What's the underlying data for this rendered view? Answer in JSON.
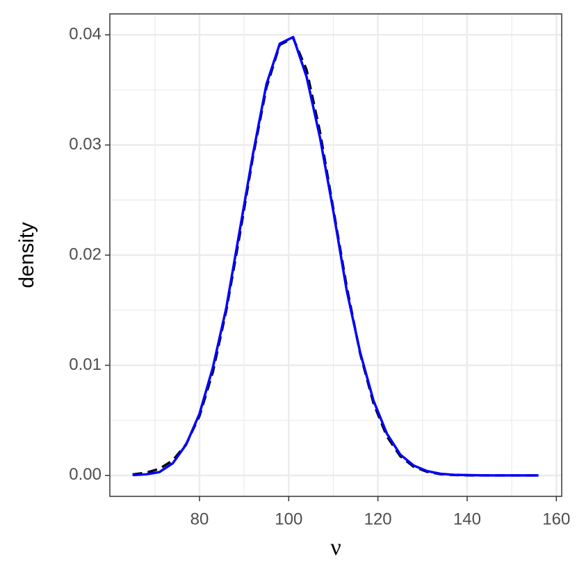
{
  "chart_data": {
    "type": "line",
    "xlabel": "ν",
    "ylabel": "density",
    "x": [
      65,
      68,
      71,
      74,
      77,
      80,
      83,
      86,
      89,
      92,
      95,
      98,
      101,
      104,
      107,
      110,
      113,
      116,
      119,
      122,
      125,
      128,
      131,
      134,
      137,
      140,
      143,
      146,
      149,
      152,
      156
    ],
    "series": [
      {
        "color": "#000000",
        "dash": "dashed",
        "values": [
          9e-05,
          0.00024,
          0.0006,
          0.00136,
          0.00283,
          0.0054,
          0.0094,
          0.01497,
          0.02178,
          0.02897,
          0.0352,
          0.0391,
          0.0397,
          0.03683,
          0.03122,
          0.0242,
          0.01714,
          0.01109,
          0.00656,
          0.00355,
          0.00175,
          0.00079,
          0.00033,
          0.00012,
          4e-05,
          1e-05,
          0,
          0,
          0,
          0,
          0
        ]
      },
      {
        "color": "#0000ff",
        "dash": "solid",
        "values": [
          3e-05,
          0.0001,
          0.0003,
          0.0011,
          0.0028,
          0.0056,
          0.0098,
          0.0152,
          0.0222,
          0.0292,
          0.0355,
          0.0392,
          0.0398,
          0.0362,
          0.0307,
          0.024,
          0.0168,
          0.0112,
          0.0068,
          0.0038,
          0.0019,
          0.0009,
          0.0004,
          0.00015,
          6e-05,
          3e-05,
          1e-05,
          0,
          0,
          0,
          0
        ]
      }
    ],
    "xlim": [
      59.9,
      161.2
    ],
    "ylim": [
      -0.0019,
      0.0419
    ],
    "xticks": [
      80,
      100,
      120,
      140,
      160
    ],
    "yticks": [
      {
        "value": 0,
        "label": "0.00"
      },
      {
        "value": 0.01,
        "label": "0.01"
      },
      {
        "value": 0.02,
        "label": "0.02"
      },
      {
        "value": 0.03,
        "label": "0.03"
      },
      {
        "value": 0.04,
        "label": "0.04"
      }
    ],
    "x_minor_ticks": [
      70,
      90,
      110,
      130,
      150
    ],
    "y_minor_ticks": [
      0.005,
      0.015,
      0.025,
      0.035
    ],
    "grid": true
  }
}
